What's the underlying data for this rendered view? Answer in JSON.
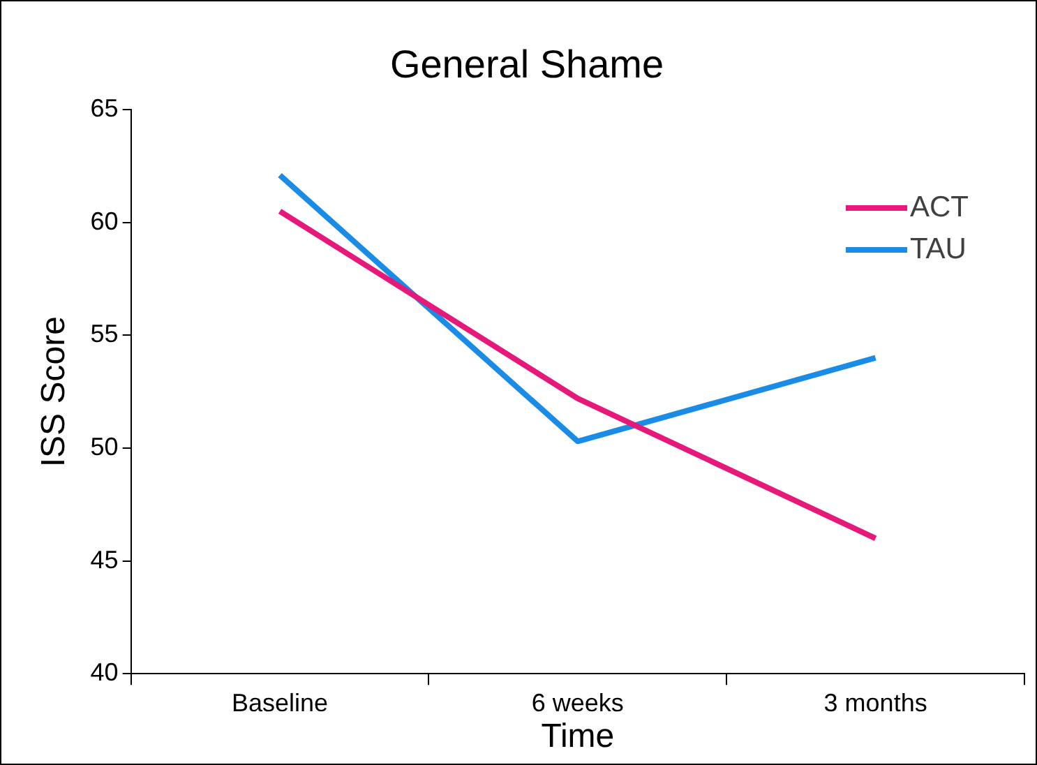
{
  "chart_data": {
    "type": "line",
    "title": "General Shame",
    "xlabel": "Time",
    "ylabel": "ISS Score",
    "categories": [
      "Baseline",
      "6 weeks",
      "3 months"
    ],
    "series": [
      {
        "name": "ACT",
        "color": "#e6197a",
        "values": [
          60.5,
          52.2,
          46.0
        ]
      },
      {
        "name": "TAU",
        "color": "#1a8ce6",
        "values": [
          62.1,
          50.3,
          54.0
        ]
      }
    ],
    "ylim": [
      40,
      65
    ],
    "yticks": [
      40,
      45,
      50,
      55,
      60,
      65
    ],
    "grid": false,
    "legend": "top right",
    "marker": "none",
    "line_style": "solid"
  }
}
